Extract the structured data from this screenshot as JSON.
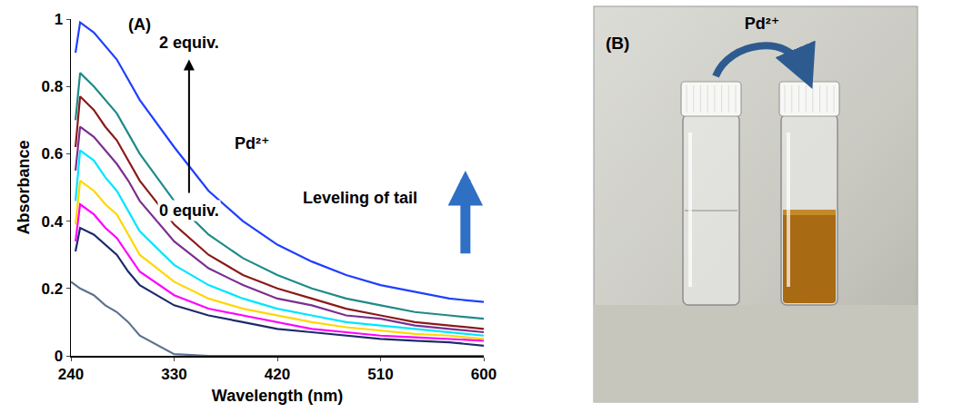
{
  "chart_data": {
    "type": "line",
    "x_label": "Wavelength (nm)",
    "y_label": "Absorbance",
    "x": [
      240,
      244,
      248,
      260,
      270,
      280,
      290,
      300,
      330,
      360,
      390,
      420,
      450,
      480,
      510,
      540,
      570,
      600
    ],
    "xlim": [
      240,
      600
    ],
    "xticks": [
      240,
      330,
      420,
      510,
      600
    ],
    "ylim": [
      0,
      1
    ],
    "yticks": [
      0,
      0.2,
      0.4,
      0.6,
      0.8,
      1
    ],
    "grid": false,
    "series": [
      {
        "color": "#5b7390",
        "values": [
          0.22,
          0.21,
          0.2,
          0.18,
          0.15,
          0.13,
          0.1,
          0.06,
          0.005,
          0,
          0,
          0,
          0,
          0,
          0,
          0,
          0,
          0
        ]
      },
      {
        "color": "#1f2a6b",
        "values": [
          null,
          0.31,
          0.38,
          0.36,
          0.33,
          0.3,
          0.25,
          0.21,
          0.15,
          0.12,
          0.1,
          0.08,
          0.07,
          0.06,
          0.05,
          0.045,
          0.04,
          0.03
        ]
      },
      {
        "color": "#ff00ff",
        "values": [
          null,
          0.34,
          0.45,
          0.42,
          0.38,
          0.35,
          0.3,
          0.25,
          0.18,
          0.14,
          0.12,
          0.1,
          0.08,
          0.07,
          0.06,
          0.055,
          0.05,
          0.045
        ]
      },
      {
        "color": "#ffd700",
        "values": [
          null,
          0.39,
          0.52,
          0.49,
          0.45,
          0.42,
          0.36,
          0.3,
          0.22,
          0.17,
          0.14,
          0.12,
          0.1,
          0.085,
          0.075,
          0.065,
          0.06,
          0.05
        ]
      },
      {
        "color": "#00e5ff",
        "values": [
          null,
          0.46,
          0.61,
          0.58,
          0.53,
          0.49,
          0.43,
          0.37,
          0.27,
          0.21,
          0.17,
          0.14,
          0.12,
          0.1,
          0.09,
          0.08,
          0.07,
          0.06
        ]
      },
      {
        "color": "#7b2f8f",
        "values": [
          null,
          0.55,
          0.68,
          0.65,
          0.61,
          0.57,
          0.52,
          0.46,
          0.34,
          0.26,
          0.21,
          0.17,
          0.15,
          0.12,
          0.11,
          0.09,
          0.08,
          0.07
        ]
      },
      {
        "color": "#8b1a1a",
        "values": [
          null,
          0.62,
          0.77,
          0.73,
          0.68,
          0.64,
          0.58,
          0.52,
          0.39,
          0.3,
          0.24,
          0.2,
          0.17,
          0.14,
          0.12,
          0.1,
          0.09,
          0.08
        ]
      },
      {
        "color": "#1f8a8a",
        "values": [
          null,
          0.7,
          0.84,
          0.8,
          0.76,
          0.72,
          0.66,
          0.6,
          0.46,
          0.36,
          0.29,
          0.24,
          0.2,
          0.17,
          0.15,
          0.13,
          0.12,
          0.11
        ]
      },
      {
        "color": "#1f3fff",
        "values": [
          null,
          0.9,
          0.99,
          0.96,
          0.92,
          0.88,
          0.82,
          0.76,
          0.62,
          0.49,
          0.4,
          0.33,
          0.28,
          0.24,
          0.21,
          0.19,
          0.17,
          0.16
        ]
      }
    ],
    "annotations": [
      "(A)",
      "2 equiv.",
      "Pd²⁺",
      "0 equiv.",
      "Leveling of tail"
    ]
  },
  "photo": {
    "label": "(B)",
    "arrow_text": "Pd²⁺"
  }
}
